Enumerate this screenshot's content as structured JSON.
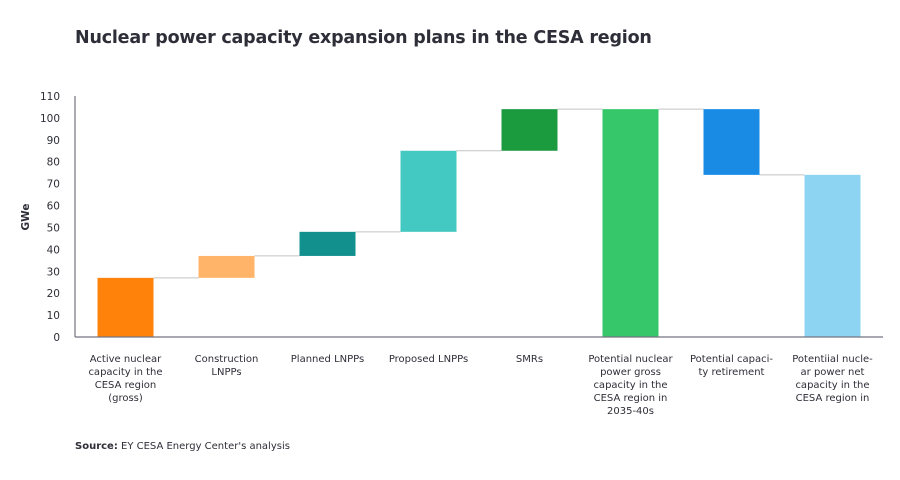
{
  "chart_data": {
    "type": "waterfall",
    "title": "Nuclear power capacity expansion plans in the CESA region",
    "ylabel": "GWe",
    "xlabel": "",
    "ylim": [
      0,
      110
    ],
    "yticks": [
      0,
      10,
      20,
      30,
      40,
      50,
      60,
      70,
      80,
      90,
      100,
      110
    ],
    "grid": false,
    "categories": [
      {
        "label": [
          "Active nuclear",
          "capacity in the",
          "CESA region",
          "(gross)"
        ],
        "kind": "total",
        "start": 0,
        "end": 27,
        "color": "#ff820a"
      },
      {
        "label": [
          "Construction",
          "LNPPs"
        ],
        "kind": "increase",
        "start": 27,
        "end": 37,
        "color": "#ffb46a"
      },
      {
        "label": [
          "Planned LNPPs"
        ],
        "kind": "increase",
        "start": 37,
        "end": 48,
        "color": "#11908e"
      },
      {
        "label": [
          "Proposed LNPPs"
        ],
        "kind": "increase",
        "start": 48,
        "end": 85,
        "color": "#43c9c1"
      },
      {
        "label": [
          "SMRs"
        ],
        "kind": "increase",
        "start": 85,
        "end": 104,
        "color": "#1b9a3e"
      },
      {
        "label": [
          "Potential nuclear",
          "power gross",
          "capacity in the",
          "CESA region in",
          "2035-40s"
        ],
        "kind": "total",
        "start": 0,
        "end": 104,
        "color": "#35c76a"
      },
      {
        "label": [
          "Potential capaci-",
          "ty retirement"
        ],
        "kind": "decrease",
        "start": 104,
        "end": 74,
        "color": "#1a8be4"
      },
      {
        "label": [
          "Potentiial nucle-",
          "ar power net",
          "capacity in the",
          "CESA region in"
        ],
        "kind": "total",
        "start": 0,
        "end": 74,
        "color": "#8dd4f2"
      }
    ]
  },
  "source": {
    "label": "Source:",
    "text": " EY CESA Energy Center's analysis"
  }
}
